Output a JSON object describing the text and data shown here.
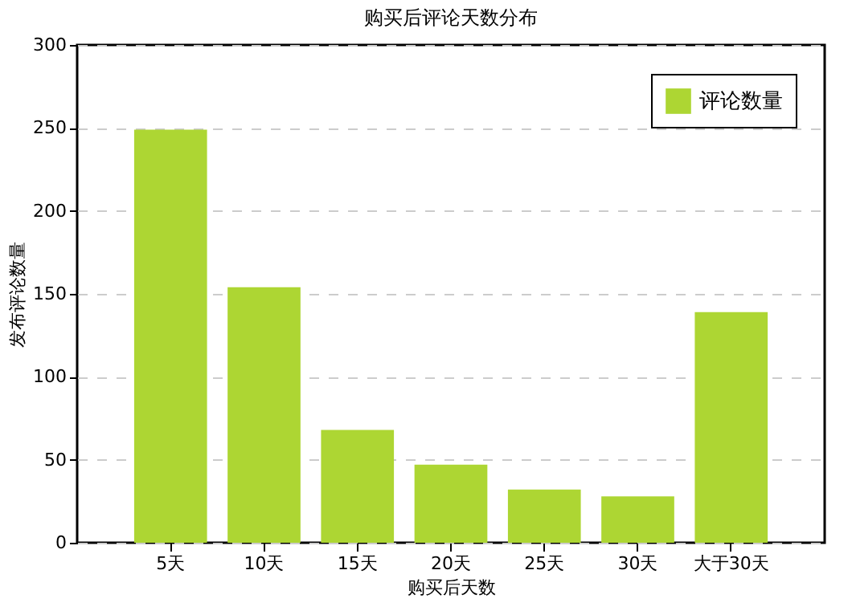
{
  "chart_data": {
    "type": "bar",
    "title": "购买后评论天数分布",
    "xlabel": "购买后天数",
    "ylabel": "发布评论数量",
    "categories": [
      "5天",
      "10天",
      "15天",
      "20天",
      "25天",
      "30天",
      "大于30天"
    ],
    "series": [
      {
        "name": "评论数量",
        "color": "#add633",
        "values": [
          249,
          154,
          68,
          47,
          32,
          28,
          139
        ]
      }
    ],
    "ylim": [
      0,
      300
    ],
    "yticks": [
      0,
      50,
      100,
      150,
      200,
      250,
      300
    ],
    "grid": "y",
    "legend": "top right"
  }
}
